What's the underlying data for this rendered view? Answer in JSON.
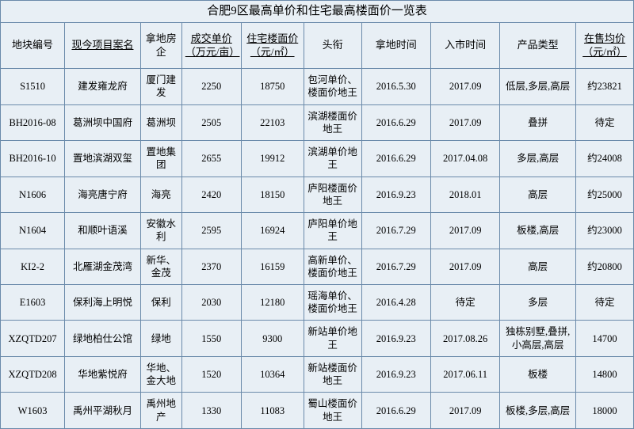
{
  "title": "合肥9区最高单价和住宅最高楼面价一览表",
  "colors": {
    "background": "#e8eff5",
    "border": "#6a8aaa",
    "text": "#000000"
  },
  "columns": [
    {
      "label": "地块编号",
      "underline": false
    },
    {
      "label": "现今项目案名",
      "underline": true
    },
    {
      "label": "拿地房企",
      "underline": false
    },
    {
      "label": "成交单价（万元/亩）",
      "underline": true
    },
    {
      "label": "住宅楼面价（元/㎡）",
      "underline": true
    },
    {
      "label": "头衔",
      "underline": false
    },
    {
      "label": "拿地时间",
      "underline": false
    },
    {
      "label": "入市时间",
      "underline": false
    },
    {
      "label": "产品类型",
      "underline": false
    },
    {
      "label": "在售均价（元/㎡）",
      "underline": true
    }
  ],
  "rows": [
    {
      "id": "S1510",
      "proj": "建发雍龙府",
      "dev": "厦门建发",
      "unit": "2250",
      "floor": "18750",
      "title_": "包河单价、楼面价地王",
      "land": "2016.5.30",
      "market": "2017.09",
      "type": "低层,多层,高层",
      "price": "约23821"
    },
    {
      "id": "BH2016-08",
      "proj": "葛洲坝中国府",
      "dev": "葛洲坝",
      "unit": "2505",
      "floor": "22103",
      "title_": "滨湖楼面价地王",
      "land": "2016.6.29",
      "market": "2017.09",
      "type": "叠拼",
      "price": "待定"
    },
    {
      "id": "BH2016-10",
      "proj": "置地滨湖双玺",
      "dev": "置地集团",
      "unit": "2655",
      "floor": "19912",
      "title_": "滨湖单价地王",
      "land": "2016.6.29",
      "market": "2017.04.08",
      "type": "多层,高层",
      "price": "约24008"
    },
    {
      "id": "N1606",
      "proj": "海亮唐宁府",
      "dev": "海亮",
      "unit": "2420",
      "floor": "18150",
      "title_": "庐阳楼面价地王",
      "land": "2016.9.23",
      "market": "2018.01",
      "type": "高层",
      "price": "约25000"
    },
    {
      "id": "N1604",
      "proj": "和顺叶语溪",
      "dev": "安徽水利",
      "unit": "2595",
      "floor": "16924",
      "title_": "庐阳单价地王",
      "land": "2016.7.29",
      "market": "2017.09",
      "type": "板楼,高层",
      "price": "约23000"
    },
    {
      "id": "KI2-2",
      "proj": "北雁湖金茂湾",
      "dev": "新华、金茂",
      "unit": "2370",
      "floor": "16159",
      "title_": "高新单价、楼面价地王",
      "land": "2016.7.29",
      "market": "2017.09",
      "type": "高层",
      "price": "约20800"
    },
    {
      "id": "E1603",
      "proj": "保利海上明悦",
      "dev": "保利",
      "unit": "2030",
      "floor": "12180",
      "title_": "瑶海单价、楼面价地王",
      "land": "2016.4.28",
      "market": "待定",
      "type": "多层",
      "price": "待定"
    },
    {
      "id": "XZQTD207",
      "proj": "绿地柏仕公馆",
      "dev": "绿地",
      "unit": "1550",
      "floor": "9300",
      "title_": "新站单价地王",
      "land": "2016.9.23",
      "market": "2017.08.26",
      "type": "独栋别墅,叠拼,小高层,高层",
      "price": "14700"
    },
    {
      "id": "XZQTD208",
      "proj": "华地紫悦府",
      "dev": "华地、金大地",
      "unit": "1520",
      "floor": "10364",
      "title_": "新站楼面价地王",
      "land": "2016.9.23",
      "market": "2017.06.11",
      "type": "板楼",
      "price": "14800"
    },
    {
      "id": "W1603",
      "proj": "禹州平湖秋月",
      "dev": "禹州地产",
      "unit": "1330",
      "floor": "11083",
      "title_": "蜀山楼面价地王",
      "land": "2016.6.29",
      "market": "2017.09",
      "type": "板楼,多层,高层",
      "price": "18000"
    }
  ]
}
